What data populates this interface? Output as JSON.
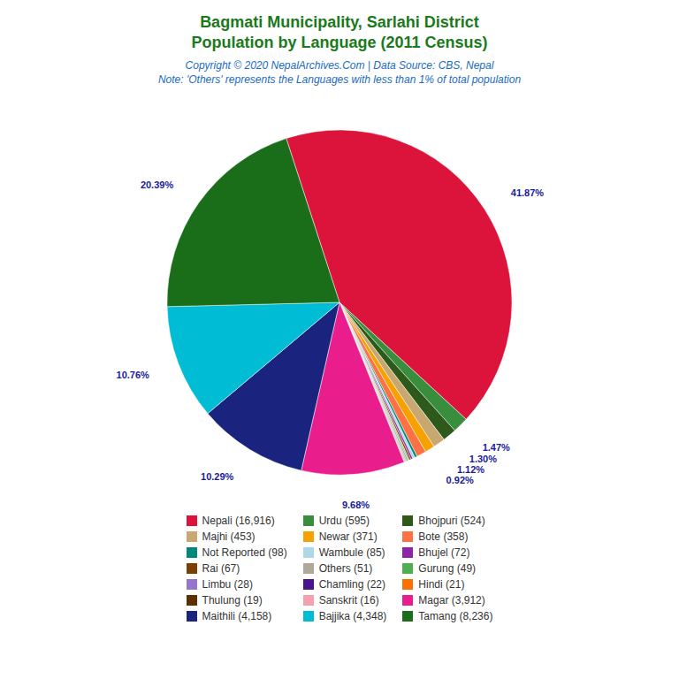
{
  "chart_data": {
    "type": "pie",
    "title": "Bagmati Municipality, Sarlahi District\nPopulation by Language (2011 Census)",
    "annotations": [
      "Copyright © 2020 NepalArchives.Com | Data Source: CBS, Nepal",
      "Note: 'Others' represents the Languages with less than 1% of total population"
    ],
    "categories": [
      "Nepali (16,916)",
      "Urdu (595)",
      "Bhojpuri (524)",
      "Majhi (453)",
      "Newar (371)",
      "Bote (358)",
      "Not Reported (98)",
      "Wambule (85)",
      "Bhujel (72)",
      "Rai (67)",
      "Others (51)",
      "Gurung (49)",
      "Limbu (28)",
      "Chamling (22)",
      "Hindi (21)",
      "Thulung (19)",
      "Sanskrit (16)",
      "Magar (3,912)",
      "Maithili (4,158)",
      "Bajjika (4,348)",
      "Tamang (8,236)"
    ],
    "values": [
      41.87,
      1.47,
      1.3,
      1.12,
      0.92,
      0.89,
      0.24,
      0.21,
      0.18,
      0.17,
      0.13,
      0.12,
      0.07,
      0.05,
      0.05,
      0.05,
      0.04,
      9.68,
      10.29,
      10.76,
      20.39
    ],
    "value_labels": [
      "41.87%",
      "1.47%",
      "1.30%",
      "1.12%",
      "0.92%",
      null,
      null,
      null,
      null,
      null,
      null,
      null,
      null,
      null,
      null,
      null,
      null,
      "9.68%",
      "10.29%",
      "10.76%",
      "20.39%"
    ],
    "colors": [
      "#dc143c",
      "#388e3c",
      "#2d5a1b",
      "#c8a870",
      "#f5a200",
      "#ff7043",
      "#00897b",
      "#add8e6",
      "#8e24aa",
      "#7b3f00",
      "#b0a898",
      "#4caf50",
      "#9575cd",
      "#4a148c",
      "#ff6f00",
      "#5d2e00",
      "#f4a0b0",
      "#e91e8c",
      "#1a237e",
      "#00bcd4",
      "#1a6e1a"
    ],
    "data_labels": true,
    "legend": "bottom"
  }
}
